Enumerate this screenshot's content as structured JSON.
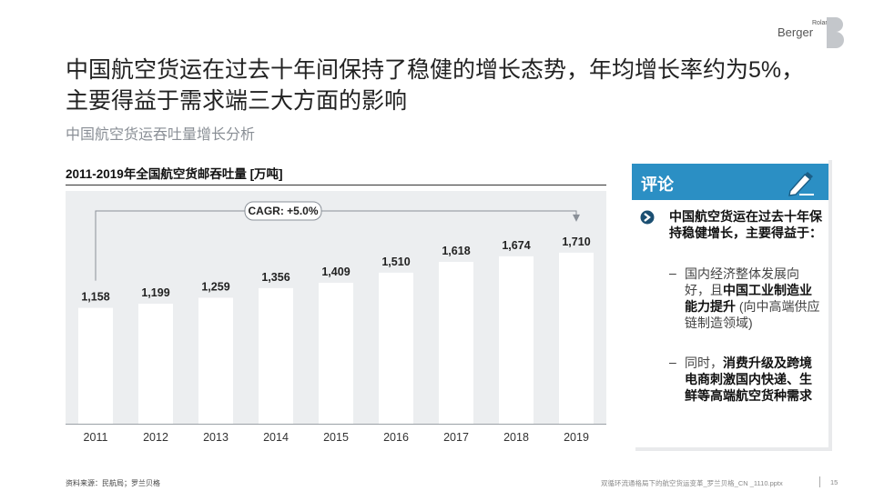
{
  "title": "中国航空货运在过去十年间保持了稳健的增长态势，年均增长率约为5%，主要得益于需求端三大方面的影响",
  "subtitle": "中国航空货运吞吐量增长分析",
  "logo": {
    "small_text": "Roland",
    "large_text": "Berger"
  },
  "chart_data": {
    "type": "bar",
    "title": "2011-2019年全国航空货邮吞吐量 [万吨]",
    "categories": [
      "2011",
      "2012",
      "2013",
      "2014",
      "2015",
      "2016",
      "2017",
      "2018",
      "2019"
    ],
    "values": [
      1158,
      1199,
      1259,
      1356,
      1409,
      1510,
      1618,
      1674,
      1710
    ],
    "value_labels": [
      "1,158",
      "1,199",
      "1,259",
      "1,356",
      "1,409",
      "1,510",
      "1,618",
      "1,674",
      "1,710"
    ],
    "annotation": "CAGR: +5.0%",
    "ylim": [
      0,
      2000
    ],
    "grid": false,
    "bar_color": "#ffffff",
    "background_color": "#eceef0"
  },
  "panel": {
    "header": "评论",
    "header_color": "#2b8fc4",
    "main_point": "中国航空货运在过去十年保持稳健增长，主要得益于：",
    "dash": "–",
    "sub_points": [
      {
        "pre": "国内经济整体发展向好，且",
        "bold": "中国工业制造业能力提升",
        "post": " (向中高端供应链制造领域)"
      },
      {
        "pre": "同时，",
        "bold": "消费升级及跨境电商刺激国内快递、生鲜等高端航空货种需求",
        "post": ""
      }
    ]
  },
  "footer": {
    "source": "资料来源：民航局；罗兰贝格",
    "file": "双循环流通格局下的航空货运变革_罗兰贝格_CN _1110.pptx",
    "page": "15"
  }
}
